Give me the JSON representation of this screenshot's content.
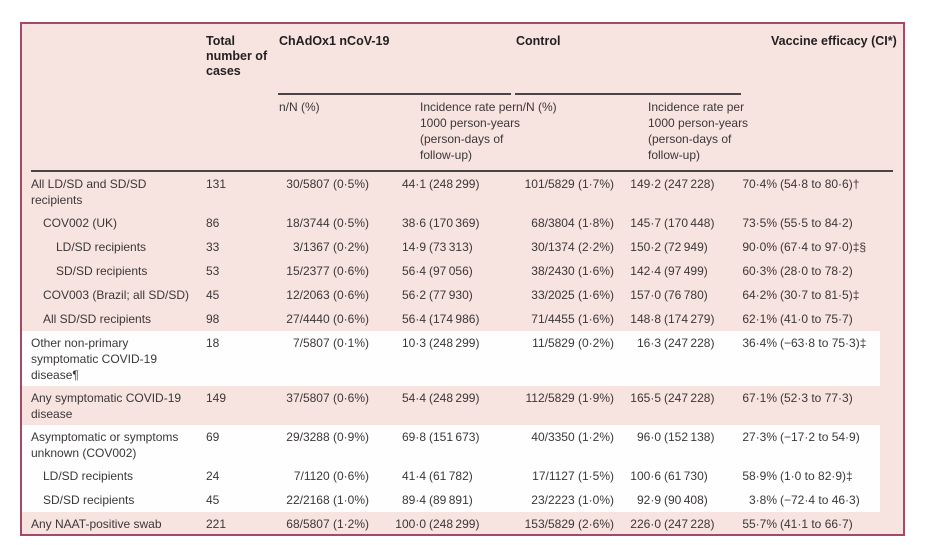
{
  "header": {
    "total": "Total number of cases",
    "vaccine_group": "ChAdOx1 nCoV-19",
    "control_group": "Control",
    "efficacy": "Vaccine efficacy (CI*)",
    "nn_label": "n/N (%)",
    "incidence_label": "Incidence rate per 1000 person-years (person-days of follow-up)"
  },
  "rows": [
    {
      "label": "All LD/SD and SD/SD recipients",
      "total": "131",
      "vacc_nN": "30/5807 (0·5%)",
      "vacc_inc": "44·1 (248 299)",
      "ctrl_nN": "101/5829 (1·7%)",
      "ctrl_inc": "149·2 (247 228)",
      "efficacy": "70·4% (54·8 to 80·6)†"
    },
    {
      "label": "COV002 (UK)",
      "total": "86",
      "vacc_nN": "18/3744 (0·5%)",
      "vacc_inc": "38·6 (170 369)",
      "ctrl_nN": "68/3804 (1·8%)",
      "ctrl_inc": "145·7 (170 448)",
      "efficacy": "73·5% (55·5 to 84·2)"
    },
    {
      "label": "LD/SD recipients",
      "total": "33",
      "vacc_nN": "3/1367 (0·2%)",
      "vacc_inc": "14·9 (73 313)",
      "ctrl_nN": "30/1374 (2·2%)",
      "ctrl_inc": "150·2 (72 949)",
      "efficacy": "90·0% (67·4 to 97·0)‡§"
    },
    {
      "label": "SD/SD recipients",
      "total": "53",
      "vacc_nN": "15/2377 (0·6%)",
      "vacc_inc": "56·4 (97 056)",
      "ctrl_nN": "38/2430 (1·6%)",
      "ctrl_inc": "142·4 (97 499)",
      "efficacy": "60·3% (28·0 to 78·2)"
    },
    {
      "label": "COV003 (Brazil; all SD/SD)",
      "total": "45",
      "vacc_nN": "12/2063 (0·6%)",
      "vacc_inc": "56·2 (77 930)",
      "ctrl_nN": "33/2025 (1·6%)",
      "ctrl_inc": "157·0 (76 780)",
      "efficacy": "64·2% (30·7 to 81·5)‡"
    },
    {
      "label": "All SD/SD recipients",
      "total": "98",
      "vacc_nN": "27/4440 (0·6%)",
      "vacc_inc": "56·4 (174 986)",
      "ctrl_nN": "71/4455 (1·6%)",
      "ctrl_inc": "148·8 (174 279)",
      "efficacy": "62·1% (41·0 to 75·7)"
    },
    {
      "label": "Other non-primary symptomatic COVID-19 disease¶",
      "total": "18",
      "vacc_nN": "7/5807 (0·1%)",
      "vacc_inc": "10·3 (248 299)",
      "ctrl_nN": "11/5829 (0·2%)",
      "ctrl_inc": "16·3 (247 228)",
      "efficacy": "36·4% (−63·8 to 75·3)‡"
    },
    {
      "label": "Any symptomatic COVID-19 disease",
      "total": "149",
      "vacc_nN": "37/5807 (0·6%)",
      "vacc_inc": "54·4 (248 299)",
      "ctrl_nN": "112/5829 (1·9%)",
      "ctrl_inc": "165·5 (247 228)",
      "efficacy": "67·1% (52·3 to 77·3)"
    },
    {
      "label": "Asymptomatic or symptoms unknown (COV002)",
      "total": "69",
      "vacc_nN": "29/3288 (0·9%)",
      "vacc_inc": "69·8 (151 673)",
      "ctrl_nN": "40/3350 (1·2%)",
      "ctrl_inc": "96·0 (152 138)",
      "efficacy": "27·3% (−17·2 to 54·9)"
    },
    {
      "label": "LD/SD recipients",
      "total": "24",
      "vacc_nN": "7/1120 (0·6%)",
      "vacc_inc": "41·4 (61 782)",
      "ctrl_nN": "17/1127 (1·5%)",
      "ctrl_inc": "100·6 (61 730)",
      "efficacy": "58·9% (1·0 to 82·9)‡"
    },
    {
      "label": "SD/SD recipients",
      "total": "45",
      "vacc_nN": "22/2168 (1·0%)",
      "vacc_inc": "89·4 (89 891)",
      "ctrl_nN": "23/2223 (1·0%)",
      "ctrl_inc": "92·9 (90 408)",
      "efficacy": "3·8% (−72·4 to 46·3)"
    },
    {
      "label": "Any NAAT-positive swab",
      "total": "221",
      "vacc_nN": "68/5807 (1·2%)",
      "vacc_inc": "100·0 (248 299)",
      "ctrl_nN": "153/5829 (2·6%)",
      "ctrl_inc": "226·0 (247 228)",
      "efficacy": "55·7% (41·1 to 66·7)"
    }
  ],
  "colors": {
    "frame_border": "#a34a68",
    "table_background": "#f7e3df",
    "white_band": "#fffefe",
    "header_text": "#231f20",
    "body_text": "#3b3738",
    "rule": "#4a4445"
  }
}
